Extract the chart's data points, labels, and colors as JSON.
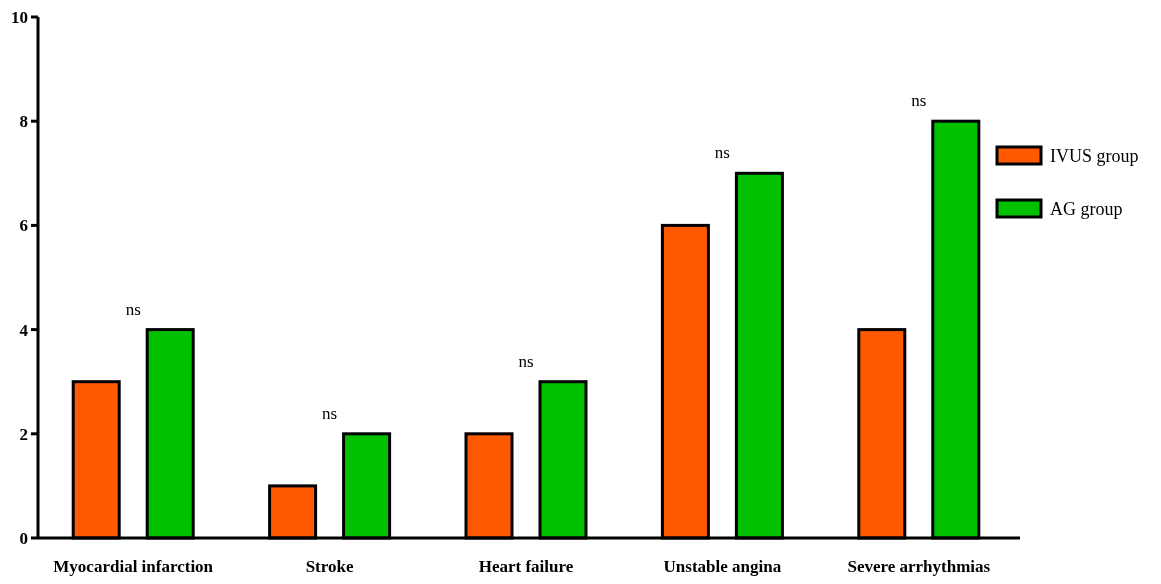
{
  "chart_data": {
    "type": "bar",
    "categories": [
      "Myocardial infarction",
      "Stroke",
      "Heart failure",
      "Unstable angina",
      "Severe arrhythmias"
    ],
    "series": [
      {
        "name": "IVUS group",
        "color": "#ff5a00",
        "values": [
          3,
          1,
          2,
          6,
          4
        ]
      },
      {
        "name": "AG group",
        "color": "#00c000",
        "values": [
          4,
          2,
          3,
          7,
          8
        ]
      }
    ],
    "ylim": [
      0,
      10
    ],
    "yticks": [
      0,
      2,
      4,
      6,
      8,
      10
    ],
    "grid": false,
    "legend": "right",
    "annotations": [
      "ns",
      "ns",
      "ns",
      "ns",
      "ns"
    ]
  }
}
